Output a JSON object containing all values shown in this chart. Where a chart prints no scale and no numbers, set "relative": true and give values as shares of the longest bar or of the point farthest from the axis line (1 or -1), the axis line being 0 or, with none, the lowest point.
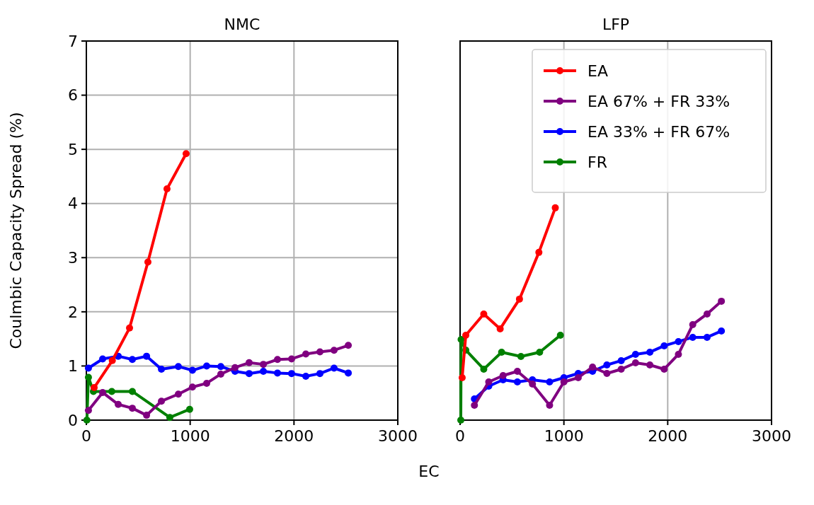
{
  "chart_data": [
    {
      "type": "line",
      "title": "NMC",
      "ylabel": "Coulmbic Capacity Spread (%)",
      "xlabel": "EC",
      "xlim": [
        0,
        3000
      ],
      "xticks": [
        0,
        1000,
        2000,
        3000
      ],
      "ylim": [
        0,
        7
      ],
      "yticks": [
        0,
        1,
        2,
        3,
        4,
        5,
        6,
        7
      ],
      "grid": true,
      "marker": "circle",
      "legend": false,
      "series": [
        {
          "color": "#ff0000",
          "x": [
            75,
            250,
            416,
            593,
            777,
            961
          ],
          "values": [
            0.6,
            1.1,
            1.7,
            2.92,
            4.27,
            4.92
          ]
        },
        {
          "color": "#800080",
          "x": [
            20,
            157,
            307,
            443,
            580,
            723,
            886,
            1022,
            1159,
            1295,
            1432,
            1568,
            1705,
            1841,
            1977,
            2114,
            2250,
            2386,
            2523
          ],
          "values": [
            0.18,
            0.51,
            0.29,
            0.22,
            0.09,
            0.35,
            0.48,
            0.61,
            0.68,
            0.85,
            0.97,
            1.06,
            1.03,
            1.12,
            1.13,
            1.22,
            1.26,
            1.29,
            1.38
          ]
        },
        {
          "color": "#0000ff",
          "x": [
            20,
            157,
            307,
            443,
            580,
            723,
            886,
            1022,
            1159,
            1295,
            1432,
            1568,
            1705,
            1841,
            1977,
            2114,
            2250,
            2386,
            2523
          ],
          "values": [
            0.96,
            1.13,
            1.18,
            1.12,
            1.18,
            0.94,
            0.99,
            0.92,
            1.0,
            0.99,
            0.9,
            0.86,
            0.9,
            0.87,
            0.86,
            0.81,
            0.86,
            0.96,
            0.87
          ]
        },
        {
          "color": "#008000",
          "x": [
            5,
            20,
            68,
            245,
            443,
            804,
            995
          ],
          "values": [
            0.0,
            0.79,
            0.53,
            0.53,
            0.53,
            0.05,
            0.2
          ]
        }
      ]
    },
    {
      "type": "line",
      "title": "LFP",
      "xlim": [
        0,
        3000
      ],
      "xticks": [
        0,
        1000,
        2000,
        3000
      ],
      "relative": true,
      "tick_labels": "x",
      "grid": "x",
      "marker": "circle",
      "legend": "top right",
      "series": [
        {
          "name": "EA",
          "color": "#ff0000",
          "x": [
            20,
            55,
            228,
            386,
            572,
            759,
            917
          ],
          "values": [
            0.2,
            0.4,
            0.5,
            0.43,
            0.57,
            0.79,
            1.0
          ]
        },
        {
          "name": "EA 67% + FR 33%",
          "color": "#800080",
          "x": [
            138,
            276,
            414,
            552,
            697,
            862,
            1000,
            1138,
            1276,
            1414,
            1552,
            1690,
            1828,
            1966,
            2103,
            2241,
            2379,
            2517
          ],
          "values": [
            0.07,
            0.18,
            0.21,
            0.23,
            0.17,
            0.07,
            0.18,
            0.2,
            0.25,
            0.22,
            0.24,
            0.27,
            0.26,
            0.24,
            0.31,
            0.45,
            0.5,
            0.56
          ]
        },
        {
          "name": "EA 33% + FR 67%",
          "color": "#0000ff",
          "x": [
            138,
            276,
            414,
            552,
            697,
            862,
            1000,
            1138,
            1276,
            1414,
            1552,
            1690,
            1828,
            1966,
            2103,
            2241,
            2379,
            2517
          ],
          "values": [
            0.1,
            0.16,
            0.19,
            0.18,
            0.19,
            0.18,
            0.2,
            0.22,
            0.23,
            0.26,
            0.28,
            0.31,
            0.32,
            0.35,
            0.37,
            0.39,
            0.39,
            0.42
          ]
        },
        {
          "name": "FR",
          "color": "#008000",
          "x": [
            7,
            10,
            55,
            228,
            400,
            586,
            766,
            966
          ],
          "values": [
            0.0,
            0.38,
            0.33,
            0.24,
            0.32,
            0.3,
            0.32,
            0.4
          ]
        }
      ]
    }
  ]
}
